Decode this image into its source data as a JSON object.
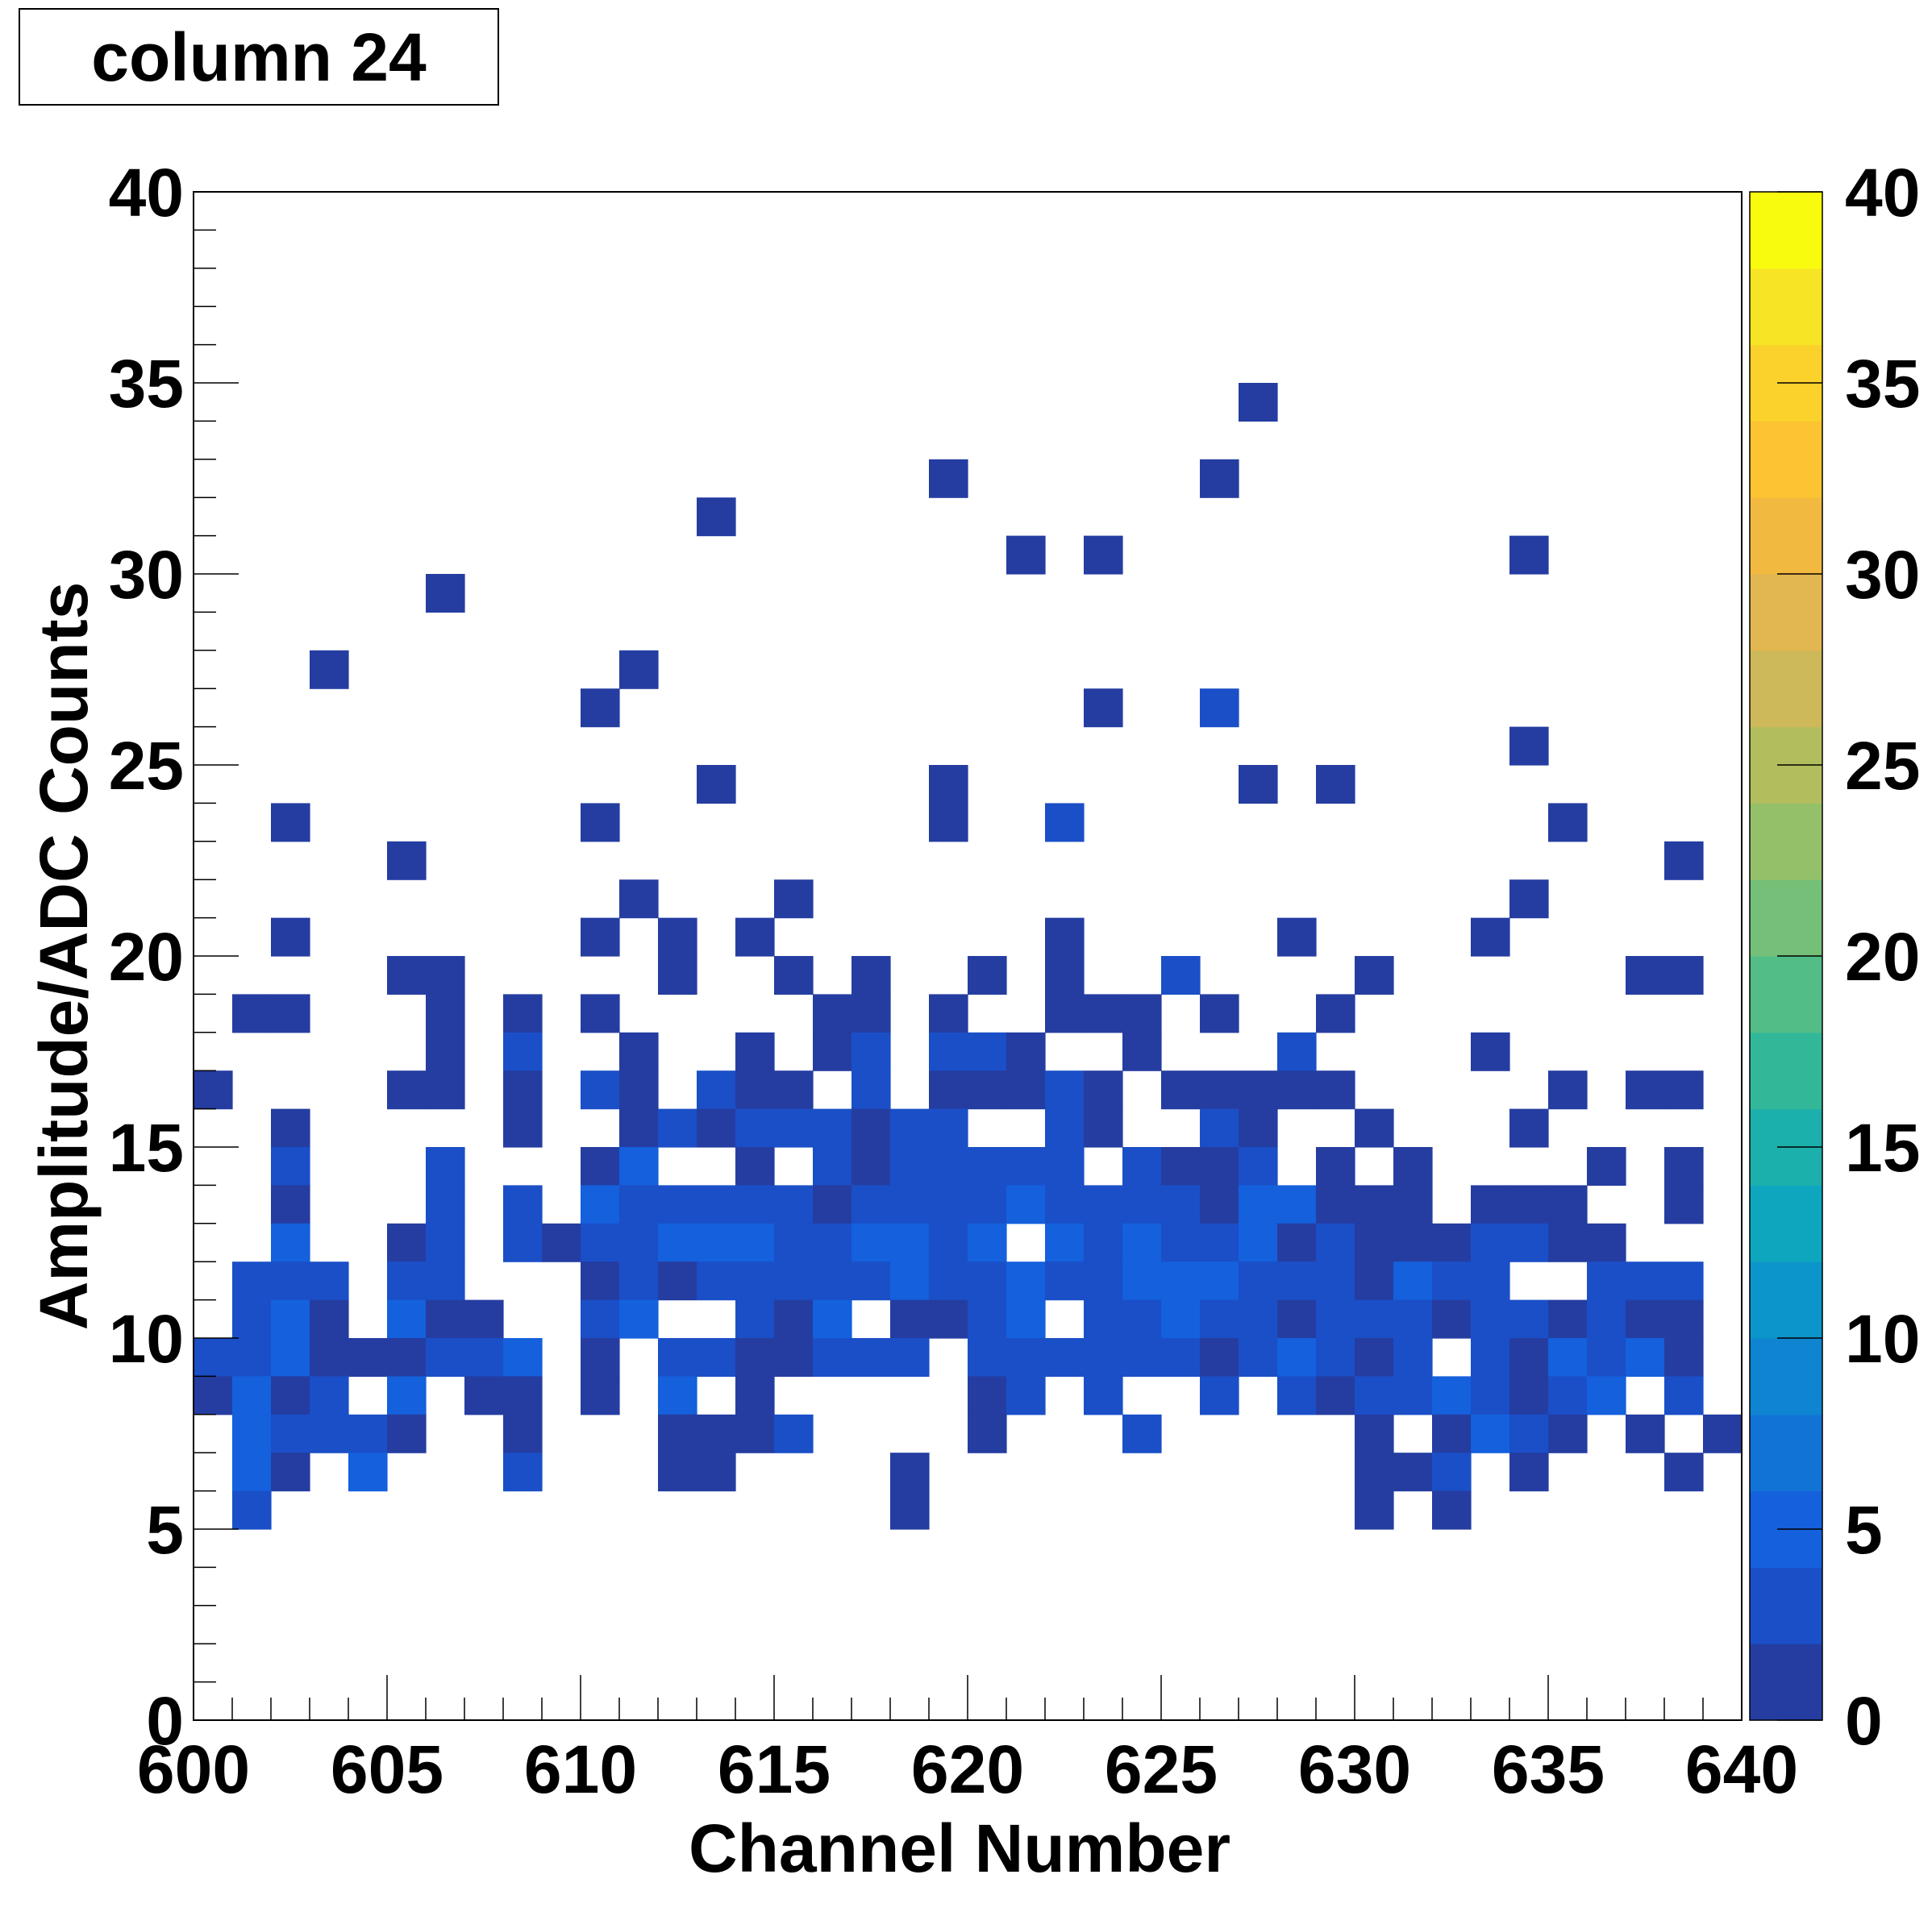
{
  "chart_data": {
    "type": "heatmap",
    "title": "column 24",
    "xlabel": "Channel Number",
    "ylabel": "Amplitude/ADC Counts",
    "xlim": [
      600,
      640
    ],
    "ylim": [
      0,
      40
    ],
    "x_ticks": [
      "600",
      "605",
      "610",
      "615",
      "620",
      "625",
      "630",
      "635",
      "640"
    ],
    "y_ticks": [
      "0",
      "5",
      "10",
      "15",
      "20",
      "25",
      "30",
      "35",
      "40"
    ],
    "z_ticks": [
      "0",
      "5",
      "10",
      "15",
      "20",
      "25",
      "30",
      "35",
      "40"
    ],
    "zlim": [
      0,
      40
    ],
    "bin_width": {
      "x": 1,
      "y": 1
    },
    "grid": false,
    "palette": [
      "#253da1",
      "#1a4fc7",
      "#1460dd",
      "#1273d6",
      "#0f84d1",
      "#0c95ca",
      "#0ea5bf",
      "#1cb0ac",
      "#32b898",
      "#52bd87",
      "#74c078",
      "#94c069",
      "#b2bd5e",
      "#cdb85a",
      "#e2b650",
      "#f2b940",
      "#fcc332",
      "#fbd12b",
      "#f7e425",
      "#f9fb0e"
    ],
    "cells": [
      [
        627,
        34,
        1
      ],
      [
        619,
        32,
        1
      ],
      [
        626,
        32,
        1
      ],
      [
        613,
        31,
        1
      ],
      [
        621,
        30,
        1
      ],
      [
        623,
        30,
        1
      ],
      [
        634,
        30,
        1
      ],
      [
        606,
        29,
        1
      ],
      [
        603,
        27,
        1
      ],
      [
        611,
        27,
        1
      ],
      [
        610,
        26,
        1
      ],
      [
        623,
        26,
        1
      ],
      [
        626,
        26,
        3
      ],
      [
        634,
        25,
        1
      ],
      [
        613,
        24,
        1
      ],
      [
        619,
        24,
        1
      ],
      [
        627,
        24,
        1
      ],
      [
        629,
        24,
        1
      ],
      [
        602,
        23,
        1
      ],
      [
        610,
        23,
        1
      ],
      [
        619,
        23,
        1
      ],
      [
        622,
        23,
        3
      ],
      [
        635,
        23,
        1
      ],
      [
        605,
        22,
        1
      ],
      [
        638,
        22,
        1
      ],
      [
        611,
        21,
        1
      ],
      [
        615,
        21,
        1
      ],
      [
        634,
        21,
        1
      ],
      [
        602,
        20,
        1
      ],
      [
        610,
        20,
        1
      ],
      [
        612,
        20,
        1
      ],
      [
        614,
        20,
        1
      ],
      [
        622,
        20,
        1
      ],
      [
        628,
        20,
        1
      ],
      [
        633,
        20,
        1
      ],
      [
        605,
        19,
        1
      ],
      [
        606,
        19,
        1
      ],
      [
        612,
        19,
        1
      ],
      [
        615,
        19,
        1
      ],
      [
        617,
        19,
        1
      ],
      [
        620,
        19,
        1
      ],
      [
        622,
        19,
        1
      ],
      [
        625,
        19,
        3
      ],
      [
        630,
        19,
        1
      ],
      [
        637,
        19,
        1
      ],
      [
        638,
        19,
        1
      ],
      [
        601,
        18,
        1
      ],
      [
        602,
        18,
        1
      ],
      [
        606,
        18,
        1
      ],
      [
        608,
        18,
        1
      ],
      [
        610,
        18,
        1
      ],
      [
        616,
        18,
        1
      ],
      [
        617,
        18,
        1
      ],
      [
        619,
        18,
        1
      ],
      [
        622,
        18,
        1
      ],
      [
        623,
        18,
        1
      ],
      [
        624,
        18,
        1
      ],
      [
        626,
        18,
        1
      ],
      [
        629,
        18,
        1
      ],
      [
        606,
        17,
        1
      ],
      [
        608,
        17,
        3
      ],
      [
        611,
        17,
        1
      ],
      [
        614,
        17,
        1
      ],
      [
        616,
        17,
        1
      ],
      [
        617,
        17,
        3
      ],
      [
        619,
        17,
        3
      ],
      [
        620,
        17,
        3
      ],
      [
        621,
        17,
        1
      ],
      [
        624,
        17,
        1
      ],
      [
        628,
        17,
        3
      ],
      [
        633,
        17,
        1
      ],
      [
        600,
        16,
        1
      ],
      [
        605,
        16,
        1
      ],
      [
        606,
        16,
        1
      ],
      [
        608,
        16,
        1
      ],
      [
        610,
        16,
        3
      ],
      [
        611,
        16,
        1
      ],
      [
        613,
        16,
        3
      ],
      [
        614,
        16,
        1
      ],
      [
        615,
        16,
        1
      ],
      [
        617,
        16,
        3
      ],
      [
        619,
        16,
        1
      ],
      [
        620,
        16,
        1
      ],
      [
        621,
        16,
        1
      ],
      [
        622,
        16,
        3
      ],
      [
        623,
        16,
        1
      ],
      [
        625,
        16,
        1
      ],
      [
        626,
        16,
        1
      ],
      [
        627,
        16,
        1
      ],
      [
        628,
        16,
        1
      ],
      [
        629,
        16,
        1
      ],
      [
        635,
        16,
        1
      ],
      [
        637,
        16,
        1
      ],
      [
        638,
        16,
        1
      ],
      [
        602,
        15,
        1
      ],
      [
        608,
        15,
        1
      ],
      [
        611,
        15,
        1
      ],
      [
        612,
        15,
        3
      ],
      [
        613,
        15,
        1
      ],
      [
        614,
        15,
        3
      ],
      [
        615,
        15,
        3
      ],
      [
        616,
        15,
        3
      ],
      [
        617,
        15,
        1
      ],
      [
        618,
        15,
        3
      ],
      [
        619,
        15,
        3
      ],
      [
        622,
        15,
        3
      ],
      [
        623,
        15,
        1
      ],
      [
        626,
        15,
        3
      ],
      [
        627,
        15,
        1
      ],
      [
        630,
        15,
        1
      ],
      [
        634,
        15,
        1
      ],
      [
        602,
        14,
        3
      ],
      [
        606,
        14,
        3
      ],
      [
        610,
        14,
        1
      ],
      [
        611,
        14,
        4
      ],
      [
        614,
        14,
        1
      ],
      [
        616,
        14,
        3
      ],
      [
        617,
        14,
        1
      ],
      [
        618,
        14,
        3
      ],
      [
        619,
        14,
        3
      ],
      [
        620,
        14,
        3
      ],
      [
        621,
        14,
        3
      ],
      [
        622,
        14,
        3
      ],
      [
        624,
        14,
        3
      ],
      [
        625,
        14,
        1
      ],
      [
        626,
        14,
        1
      ],
      [
        627,
        14,
        3
      ],
      [
        629,
        14,
        1
      ],
      [
        631,
        14,
        1
      ],
      [
        636,
        14,
        1
      ],
      [
        638,
        14,
        1
      ],
      [
        602,
        13,
        1
      ],
      [
        606,
        13,
        3
      ],
      [
        608,
        13,
        3
      ],
      [
        610,
        13,
        4
      ],
      [
        611,
        13,
        3
      ],
      [
        612,
        13,
        3
      ],
      [
        613,
        13,
        3
      ],
      [
        614,
        13,
        3
      ],
      [
        615,
        13,
        3
      ],
      [
        616,
        13,
        1
      ],
      [
        617,
        13,
        3
      ],
      [
        618,
        13,
        3
      ],
      [
        619,
        13,
        3
      ],
      [
        620,
        13,
        3
      ],
      [
        621,
        13,
        4
      ],
      [
        622,
        13,
        3
      ],
      [
        623,
        13,
        3
      ],
      [
        624,
        13,
        3
      ],
      [
        625,
        13,
        3
      ],
      [
        626,
        13,
        1
      ],
      [
        627,
        13,
        4
      ],
      [
        628,
        13,
        5
      ],
      [
        629,
        13,
        1
      ],
      [
        630,
        13,
        1
      ],
      [
        631,
        13,
        1
      ],
      [
        633,
        13,
        1
      ],
      [
        634,
        13,
        1
      ],
      [
        635,
        13,
        1
      ],
      [
        638,
        13,
        1
      ],
      [
        602,
        12,
        4
      ],
      [
        605,
        12,
        1
      ],
      [
        606,
        12,
        3
      ],
      [
        608,
        12,
        3
      ],
      [
        609,
        12,
        1
      ],
      [
        610,
        12,
        3
      ],
      [
        611,
        12,
        3
      ],
      [
        612,
        12,
        5
      ],
      [
        613,
        12,
        4
      ],
      [
        614,
        12,
        4
      ],
      [
        615,
        12,
        3
      ],
      [
        616,
        12,
        3
      ],
      [
        617,
        12,
        4
      ],
      [
        618,
        12,
        4
      ],
      [
        619,
        12,
        3
      ],
      [
        620,
        12,
        4
      ],
      [
        622,
        12,
        4
      ],
      [
        623,
        12,
        3
      ],
      [
        624,
        12,
        4
      ],
      [
        625,
        12,
        3
      ],
      [
        626,
        12,
        3
      ],
      [
        627,
        12,
        4
      ],
      [
        628,
        12,
        1
      ],
      [
        629,
        12,
        3
      ],
      [
        630,
        12,
        1
      ],
      [
        631,
        12,
        1
      ],
      [
        632,
        12,
        1
      ],
      [
        633,
        12,
        3
      ],
      [
        634,
        12,
        3
      ],
      [
        635,
        12,
        1
      ],
      [
        636,
        12,
        1
      ],
      [
        601,
        11,
        3
      ],
      [
        602,
        11,
        3
      ],
      [
        603,
        11,
        3
      ],
      [
        605,
        11,
        3
      ],
      [
        606,
        11,
        3
      ],
      [
        610,
        11,
        1
      ],
      [
        611,
        11,
        3
      ],
      [
        612,
        11,
        1
      ],
      [
        613,
        11,
        3
      ],
      [
        614,
        11,
        3
      ],
      [
        615,
        11,
        3
      ],
      [
        616,
        11,
        3
      ],
      [
        617,
        11,
        3
      ],
      [
        618,
        11,
        4
      ],
      [
        619,
        11,
        3
      ],
      [
        620,
        11,
        3
      ],
      [
        621,
        11,
        4
      ],
      [
        622,
        11,
        3
      ],
      [
        623,
        11,
        3
      ],
      [
        624,
        11,
        4
      ],
      [
        625,
        11,
        4
      ],
      [
        626,
        11,
        4
      ],
      [
        627,
        11,
        3
      ],
      [
        628,
        11,
        3
      ],
      [
        629,
        11,
        3
      ],
      [
        630,
        11,
        1
      ],
      [
        631,
        11,
        4
      ],
      [
        632,
        11,
        3
      ],
      [
        633,
        11,
        3
      ],
      [
        636,
        11,
        3
      ],
      [
        637,
        11,
        3
      ],
      [
        638,
        11,
        3
      ],
      [
        601,
        10,
        3
      ],
      [
        602,
        10,
        4
      ],
      [
        603,
        10,
        1
      ],
      [
        605,
        10,
        4
      ],
      [
        606,
        10,
        1
      ],
      [
        607,
        10,
        1
      ],
      [
        610,
        10,
        3
      ],
      [
        611,
        10,
        4
      ],
      [
        614,
        10,
        3
      ],
      [
        615,
        10,
        1
      ],
      [
        616,
        10,
        4
      ],
      [
        618,
        10,
        1
      ],
      [
        619,
        10,
        1
      ],
      [
        620,
        10,
        3
      ],
      [
        621,
        10,
        4
      ],
      [
        623,
        10,
        3
      ],
      [
        624,
        10,
        3
      ],
      [
        625,
        10,
        4
      ],
      [
        626,
        10,
        3
      ],
      [
        627,
        10,
        3
      ],
      [
        628,
        10,
        1
      ],
      [
        629,
        10,
        3
      ],
      [
        630,
        10,
        3
      ],
      [
        631,
        10,
        3
      ],
      [
        632,
        10,
        1
      ],
      [
        633,
        10,
        3
      ],
      [
        634,
        10,
        3
      ],
      [
        635,
        10,
        1
      ],
      [
        636,
        10,
        3
      ],
      [
        637,
        10,
        1
      ],
      [
        638,
        10,
        1
      ],
      [
        600,
        9,
        3
      ],
      [
        601,
        9,
        3
      ],
      [
        602,
        9,
        4
      ],
      [
        603,
        9,
        1
      ],
      [
        604,
        9,
        1
      ],
      [
        605,
        9,
        1
      ],
      [
        606,
        9,
        3
      ],
      [
        607,
        9,
        3
      ],
      [
        608,
        9,
        4
      ],
      [
        610,
        9,
        1
      ],
      [
        612,
        9,
        3
      ],
      [
        613,
        9,
        3
      ],
      [
        614,
        9,
        1
      ],
      [
        615,
        9,
        1
      ],
      [
        616,
        9,
        3
      ],
      [
        617,
        9,
        3
      ],
      [
        618,
        9,
        3
      ],
      [
        620,
        9,
        3
      ],
      [
        621,
        9,
        3
      ],
      [
        622,
        9,
        3
      ],
      [
        623,
        9,
        3
      ],
      [
        624,
        9,
        3
      ],
      [
        625,
        9,
        3
      ],
      [
        626,
        9,
        1
      ],
      [
        627,
        9,
        3
      ],
      [
        628,
        9,
        4
      ],
      [
        629,
        9,
        3
      ],
      [
        630,
        9,
        1
      ],
      [
        631,
        9,
        3
      ],
      [
        633,
        9,
        3
      ],
      [
        634,
        9,
        1
      ],
      [
        635,
        9,
        4
      ],
      [
        636,
        9,
        3
      ],
      [
        637,
        9,
        4
      ],
      [
        638,
        9,
        1
      ],
      [
        600,
        8,
        1
      ],
      [
        601,
        8,
        4
      ],
      [
        602,
        8,
        1
      ],
      [
        603,
        8,
        3
      ],
      [
        605,
        8,
        5
      ],
      [
        607,
        8,
        1
      ],
      [
        608,
        8,
        1
      ],
      [
        610,
        8,
        1
      ],
      [
        612,
        8,
        4
      ],
      [
        614,
        8,
        1
      ],
      [
        620,
        8,
        1
      ],
      [
        621,
        8,
        3
      ],
      [
        623,
        8,
        3
      ],
      [
        626,
        8,
        3
      ],
      [
        628,
        8,
        3
      ],
      [
        629,
        8,
        1
      ],
      [
        630,
        8,
        3
      ],
      [
        631,
        8,
        3
      ],
      [
        632,
        8,
        4
      ],
      [
        633,
        8,
        3
      ],
      [
        634,
        8,
        1
      ],
      [
        635,
        8,
        3
      ],
      [
        636,
        8,
        4
      ],
      [
        638,
        8,
        3
      ],
      [
        601,
        7,
        4
      ],
      [
        602,
        7,
        3
      ],
      [
        603,
        7,
        3
      ],
      [
        604,
        7,
        3
      ],
      [
        605,
        7,
        1
      ],
      [
        608,
        7,
        1
      ],
      [
        612,
        7,
        1
      ],
      [
        613,
        7,
        1
      ],
      [
        614,
        7,
        1
      ],
      [
        615,
        7,
        3
      ],
      [
        620,
        7,
        1
      ],
      [
        624,
        7,
        3
      ],
      [
        630,
        7,
        1
      ],
      [
        632,
        7,
        1
      ],
      [
        633,
        7,
        4
      ],
      [
        634,
        7,
        3
      ],
      [
        635,
        7,
        1
      ],
      [
        637,
        7,
        1
      ],
      [
        639,
        7,
        1
      ],
      [
        601,
        6,
        5
      ],
      [
        602,
        6,
        1
      ],
      [
        604,
        6,
        4
      ],
      [
        608,
        6,
        3
      ],
      [
        612,
        6,
        1
      ],
      [
        613,
        6,
        1
      ],
      [
        618,
        6,
        1
      ],
      [
        630,
        6,
        1
      ],
      [
        631,
        6,
        1
      ],
      [
        632,
        6,
        3
      ],
      [
        634,
        6,
        1
      ],
      [
        638,
        6,
        1
      ],
      [
        601,
        5,
        3
      ],
      [
        618,
        5,
        1
      ],
      [
        630,
        5,
        1
      ],
      [
        632,
        5,
        1
      ]
    ]
  }
}
